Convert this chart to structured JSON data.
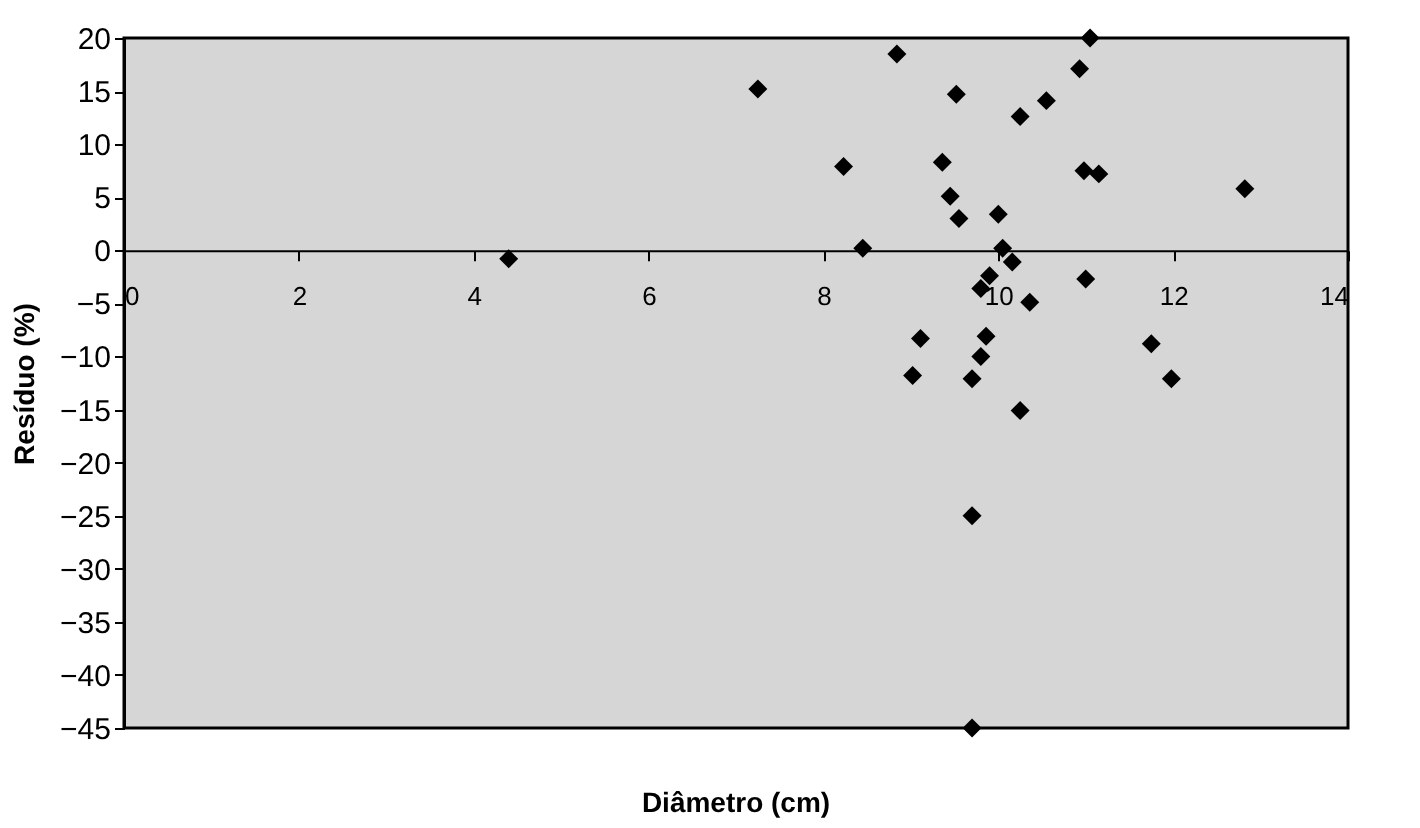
{
  "chart_data": {
    "type": "scatter",
    "xlabel": "Diâmetro (cm)",
    "ylabel": "Resíduo (%)",
    "xlim": [
      0,
      14
    ],
    "xticks": [
      0,
      2,
      4,
      6,
      8,
      10,
      12,
      14
    ],
    "ylim": [
      -45,
      20
    ],
    "yticks": [
      20,
      15,
      10,
      5,
      0,
      -5,
      -10,
      -15,
      -20,
      -25,
      -30,
      -35,
      -40,
      -45
    ],
    "grid": false,
    "legend": false,
    "marker": "diamond",
    "series": [
      {
        "color": "#000000",
        "x": [
          4.4,
          7.25,
          8.84,
          8.23,
          8.45,
          9.52,
          9.36,
          9.45,
          9.55,
          10.0,
          10.25,
          10.55,
          11.05,
          10.93,
          10.98,
          11.15,
          12.82,
          10.05,
          10.16,
          9.9,
          9.8,
          10.36,
          11.0,
          9.11,
          9.02,
          9.86,
          9.8,
          9.7,
          10.25,
          11.75,
          11.98,
          9.7,
          9.7
        ],
        "values": [
          -0.8,
          15.2,
          18.5,
          7.9,
          0.2,
          14.7,
          8.3,
          5.1,
          3.0,
          3.4,
          12.6,
          14.1,
          20,
          17.1,
          7.5,
          7.2,
          5.8,
          0.2,
          -1.1,
          -2.4,
          -3.6,
          -4.9,
          -2.7,
          -8.3,
          -11.8,
          -8.1,
          -10,
          -12.1,
          -15.1,
          -8.8,
          -12.1,
          -25,
          -45
        ]
      }
    ]
  }
}
